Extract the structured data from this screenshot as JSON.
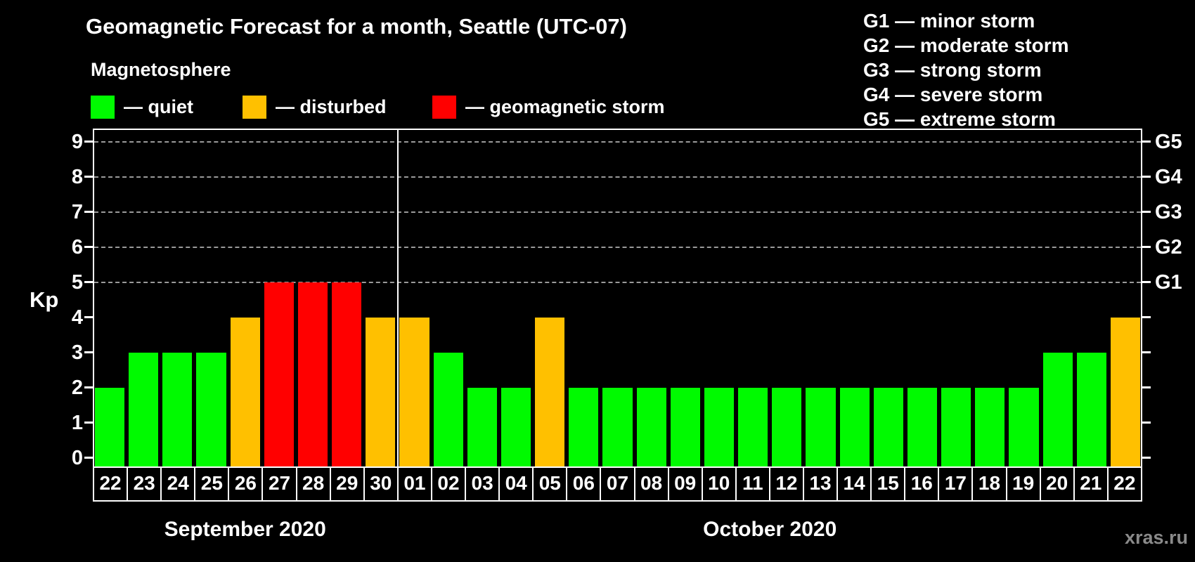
{
  "title": "Geomagnetic Forecast for a month, Seattle (UTC-07)",
  "subtitle": "Magnetosphere",
  "watermark": "xras.ru",
  "colors": {
    "quiet": "#00fa00",
    "disturbed": "#ffc000",
    "storm": "#ff0000",
    "grid": "#9a9a9a",
    "axis": "#ffffff",
    "watermark": "#8a8a8a"
  },
  "kp_legend": [
    {
      "state": "quiet",
      "label": "— quiet"
    },
    {
      "state": "disturbed",
      "label": "— disturbed"
    },
    {
      "state": "storm",
      "label": "— geomagnetic storm"
    }
  ],
  "g_legend": [
    "G1 — minor storm",
    "G2 — moderate storm",
    "G3 — strong storm",
    "G4 — severe storm",
    "G5 — extreme storm"
  ],
  "axes": {
    "y_label": "Kp",
    "y_ticks": [
      0,
      1,
      2,
      3,
      4,
      5,
      6,
      7,
      8,
      9
    ],
    "y_right": [
      {
        "kp": 5,
        "label": "G1"
      },
      {
        "kp": 6,
        "label": "G2"
      },
      {
        "kp": 7,
        "label": "G3"
      },
      {
        "kp": 8,
        "label": "G4"
      },
      {
        "kp": 9,
        "label": "G5"
      }
    ],
    "grid_kp": [
      5,
      6,
      7,
      8,
      9
    ]
  },
  "chart_data": {
    "type": "bar",
    "title": "Geomagnetic Forecast for a month, Seattle (UTC-07)",
    "ylabel": "Kp",
    "ylim": [
      0,
      9.4
    ],
    "legend_position": "top",
    "grid": "dashed horizontal lines at Kp 5-9 (G1-G5)",
    "months": [
      {
        "label": "September 2020",
        "days": [
          "22",
          "23",
          "24",
          "25",
          "26",
          "27",
          "28",
          "29",
          "30"
        ],
        "kp": [
          2,
          3,
          3,
          3,
          4,
          5,
          5,
          5,
          4
        ],
        "state": [
          "quiet",
          "quiet",
          "quiet",
          "quiet",
          "disturbed",
          "storm",
          "storm",
          "storm",
          "disturbed"
        ]
      },
      {
        "label": "October 2020",
        "days": [
          "01",
          "02",
          "03",
          "04",
          "05",
          "06",
          "07",
          "08",
          "09",
          "10",
          "11",
          "12",
          "13",
          "14",
          "15",
          "16",
          "17",
          "18",
          "19",
          "20",
          "21",
          "22"
        ],
        "kp": [
          4,
          3,
          2,
          2,
          4,
          2,
          2,
          2,
          2,
          2,
          2,
          2,
          2,
          2,
          2,
          2,
          2,
          2,
          2,
          3,
          3,
          4
        ],
        "state": [
          "disturbed",
          "quiet",
          "quiet",
          "quiet",
          "disturbed",
          "quiet",
          "quiet",
          "quiet",
          "quiet",
          "quiet",
          "quiet",
          "quiet",
          "quiet",
          "quiet",
          "quiet",
          "quiet",
          "quiet",
          "quiet",
          "quiet",
          "quiet",
          "quiet",
          "disturbed"
        ]
      }
    ]
  }
}
